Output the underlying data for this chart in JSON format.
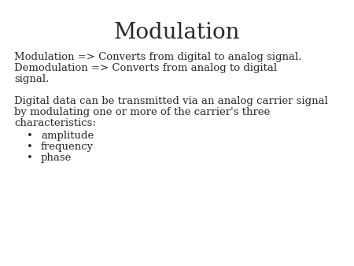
{
  "title": "Modulation",
  "title_fontsize": 20,
  "title_font": "serif",
  "background_color": "#ffffff",
  "text_color": "#2a2a2a",
  "body_fontsize": 9.5,
  "body_font": "serif",
  "paragraph1_lines": [
    "Modulation => Converts from digital to analog signal.",
    "Demodulation => Converts from analog to digital",
    "signal."
  ],
  "paragraph2_lines": [
    "Digital data can be transmitted via an analog carrier signal",
    "by modulating one or more of the carrier's three",
    "characteristics:"
  ],
  "bullet_items": [
    "amplitude",
    "frequency",
    "phase"
  ]
}
